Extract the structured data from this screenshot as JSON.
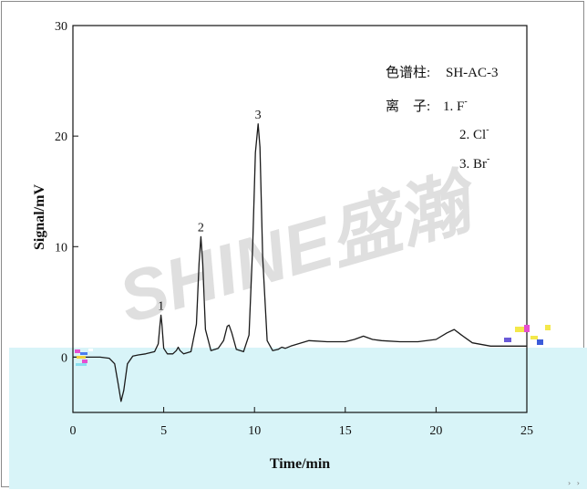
{
  "chart_data": {
    "type": "line",
    "title": "",
    "xlabel": "Time/min",
    "ylabel": "Signal/mV",
    "xlim": [
      0,
      25
    ],
    "ylim": [
      -5,
      30
    ],
    "x_ticks": [
      0,
      5,
      10,
      15,
      20,
      25
    ],
    "y_ticks": [
      0,
      10,
      20,
      30
    ],
    "grid": false,
    "watermark": "SHINE盛瀚",
    "legend": {
      "placement": "top-right",
      "column_label": "色谱柱:",
      "column_value": "SH-AC-3",
      "ion_label": "离　子:",
      "ions": [
        "1. F",
        "2. Cl",
        "3. Br"
      ],
      "superscript": "-"
    },
    "peak_labels": [
      {
        "label": "1",
        "x": 4.85,
        "y": 3.8
      },
      {
        "label": "2",
        "x": 7.05,
        "y": 10.9
      },
      {
        "label": "3",
        "x": 10.2,
        "y": 21.1
      }
    ],
    "series": [
      {
        "color": "#1a1a1a",
        "x": [
          0.0,
          1.5,
          2.0,
          2.3,
          2.5,
          2.65,
          2.8,
          3.0,
          3.3,
          3.6,
          4.0,
          4.5,
          4.7,
          4.8,
          4.85,
          4.9,
          5.0,
          5.2,
          5.5,
          5.7,
          5.8,
          5.9,
          6.1,
          6.5,
          6.8,
          6.95,
          7.05,
          7.15,
          7.3,
          7.6,
          8.0,
          8.3,
          8.5,
          8.6,
          8.75,
          9.0,
          9.4,
          9.7,
          9.9,
          10.05,
          10.2,
          10.3,
          10.45,
          10.7,
          11.0,
          11.3,
          11.5,
          11.7,
          12.0,
          13.0,
          14.0,
          15.0,
          15.5,
          16.0,
          16.5,
          17.0,
          18.0,
          19.0,
          20.0,
          20.6,
          21.0,
          21.4,
          22.0,
          23.0,
          24.0,
          25.0
        ],
        "y": [
          0.0,
          0.0,
          -0.1,
          -0.6,
          -2.5,
          -4.0,
          -3.0,
          -0.6,
          0.1,
          0.2,
          0.3,
          0.5,
          1.2,
          3.0,
          3.8,
          3.0,
          0.8,
          0.3,
          0.3,
          0.6,
          0.9,
          0.6,
          0.3,
          0.5,
          3.0,
          8.5,
          10.9,
          8.5,
          2.5,
          0.6,
          0.8,
          1.5,
          2.8,
          2.9,
          2.2,
          0.7,
          0.5,
          2.0,
          10.0,
          18.5,
          21.1,
          19.0,
          9.0,
          1.5,
          0.6,
          0.7,
          0.9,
          0.8,
          1.0,
          1.5,
          1.4,
          1.4,
          1.6,
          1.9,
          1.6,
          1.5,
          1.4,
          1.4,
          1.6,
          2.2,
          2.5,
          2.0,
          1.3,
          1.0,
          1.0,
          1.0
        ]
      }
    ]
  }
}
